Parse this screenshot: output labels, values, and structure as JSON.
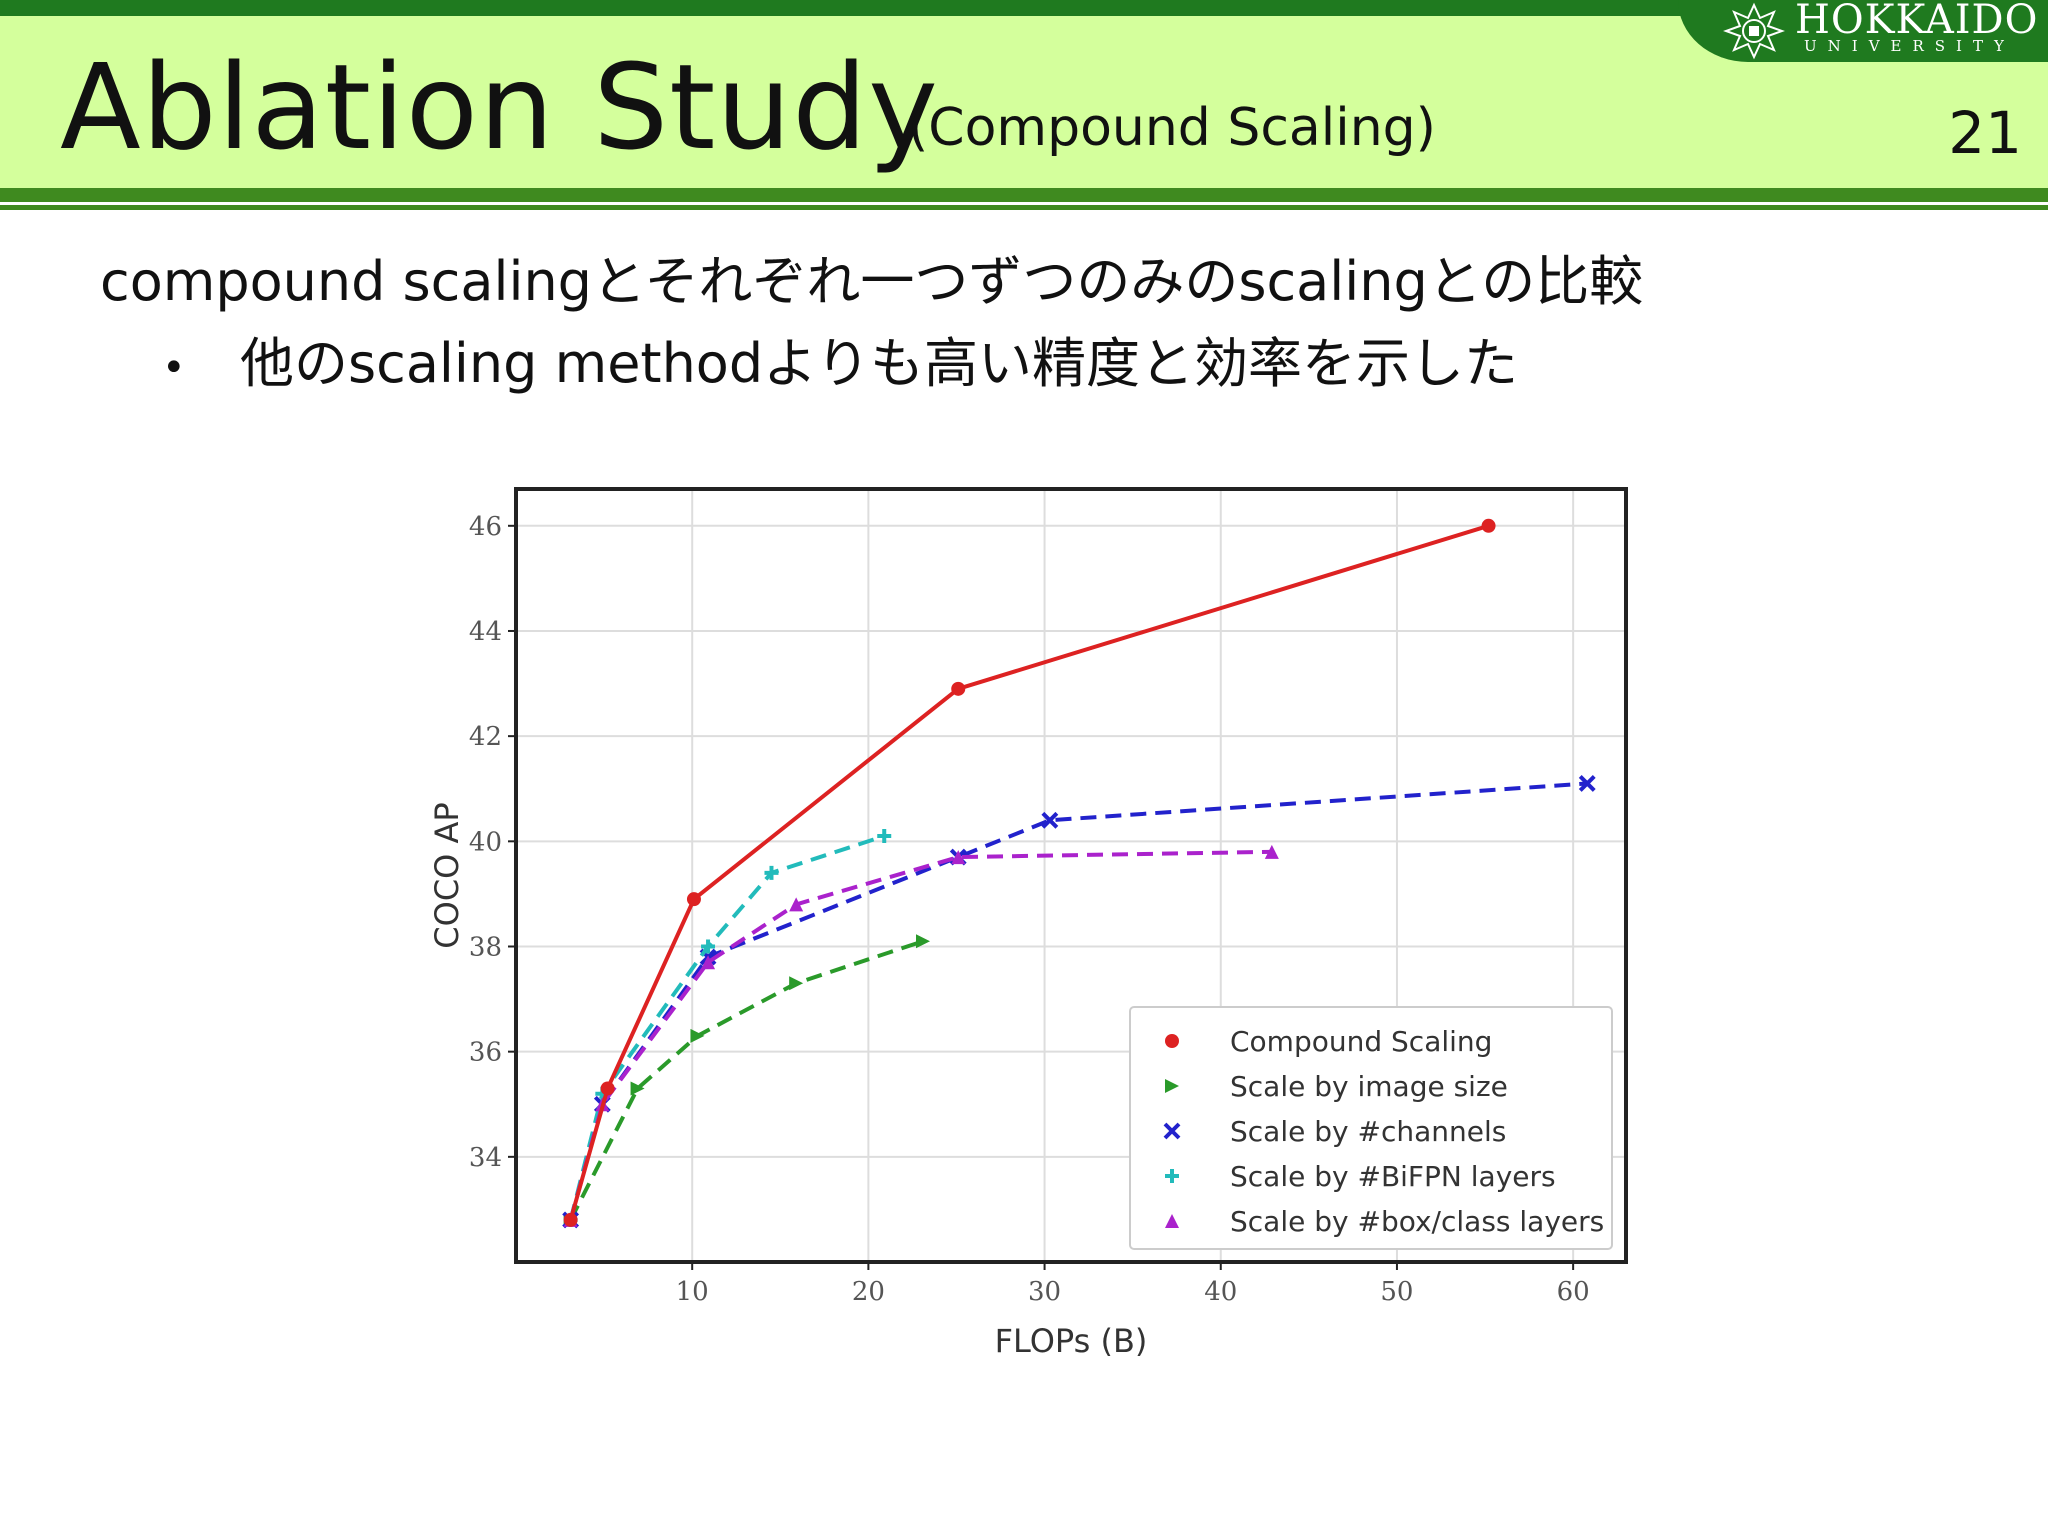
{
  "header": {
    "title": "Ablation Study",
    "subtitle": "(Compound Scaling)",
    "slide_number": "21",
    "logo": {
      "name": "HOKKAIDO",
      "sub": "UNIVERSITY",
      "emblem": "hokkaido-university-emblem-icon"
    }
  },
  "colors": {
    "header_band": "#d4ff9c",
    "header_lines": "#1f7a1f",
    "compound": "#dd2222",
    "image_size": "#2a9a2a",
    "channels": "#2222cc",
    "bifpn": "#22bbbb",
    "box_class": "#aa22cc"
  },
  "body": {
    "line1": "compound scalingとそれぞれ一つずつのみのscalingとの比較",
    "bullet_symbol": "•",
    "bullet1": "他のscaling methodよりも高い精度と効率を示した"
  },
  "chart_data": {
    "type": "line",
    "xlabel": "FLOPs (B)",
    "ylabel": "COCO AP",
    "xlim": [
      0,
      63
    ],
    "ylim": [
      32,
      46.7
    ],
    "xticks": [
      10,
      20,
      30,
      40,
      50,
      60
    ],
    "yticks": [
      34,
      36,
      38,
      40,
      42,
      44,
      46
    ],
    "grid": true,
    "legend_position": "lower-right",
    "series": [
      {
        "name": "Compound Scaling",
        "marker": "circle",
        "dash": "solid",
        "color": "#dd2222",
        "x": [
          3.1,
          5.2,
          10.1,
          25.1,
          55.2
        ],
        "y": [
          32.8,
          35.3,
          38.9,
          42.9,
          46.0
        ]
      },
      {
        "name": "Scale by image size",
        "marker": "triangle-right",
        "dash": "dashed",
        "color": "#2a9a2a",
        "x": [
          3.1,
          6.9,
          10.3,
          15.9,
          23.1
        ],
        "y": [
          32.8,
          35.3,
          36.3,
          37.3,
          38.1
        ]
      },
      {
        "name": "Scale by #channels",
        "marker": "x",
        "dash": "dashed",
        "color": "#2222cc",
        "x": [
          3.1,
          4.9,
          10.9,
          25.1,
          30.3,
          60.8
        ],
        "y": [
          32.8,
          35.0,
          37.8,
          39.7,
          40.4,
          41.1
        ]
      },
      {
        "name": "Scale by #BiFPN layers",
        "marker": "plus",
        "dash": "dashed",
        "color": "#22bbbb",
        "x": [
          3.1,
          4.9,
          10.9,
          14.5,
          20.9
        ],
        "y": [
          32.8,
          35.2,
          38.0,
          39.4,
          40.1
        ]
      },
      {
        "name": "Scale by #box/class layers",
        "marker": "triangle-up",
        "dash": "dashed",
        "color": "#aa22cc",
        "x": [
          3.1,
          4.9,
          10.9,
          15.9,
          25.1,
          42.9
        ],
        "y": [
          32.8,
          35.0,
          37.7,
          38.8,
          39.7,
          39.8
        ]
      }
    ]
  }
}
